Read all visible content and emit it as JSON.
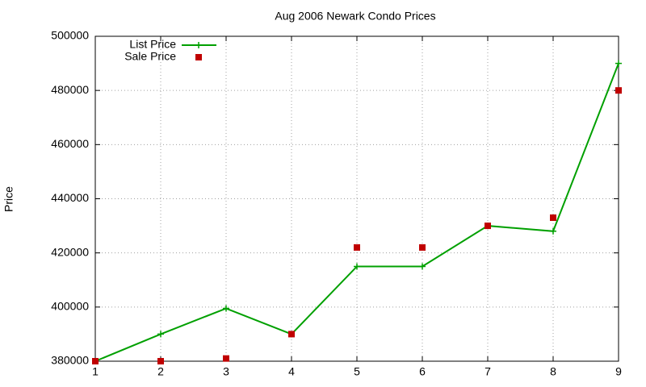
{
  "chart_data": {
    "type": "line",
    "title": "Aug 2006 Newark Condo Prices",
    "y_label": "Price",
    "x": [
      1,
      2,
      3,
      4,
      5,
      6,
      7,
      8,
      9
    ],
    "series": [
      {
        "name": "List Price",
        "color": "#00a000",
        "mode": "lines+markers",
        "values": [
          380000,
          390000,
          399500,
          390000,
          415000,
          415000,
          430000,
          428000,
          490000
        ]
      },
      {
        "name": "Sale Price",
        "color": "#c00000",
        "mode": "markers",
        "values": [
          380000,
          380000,
          381000,
          390000,
          422000,
          422000,
          430000,
          433000,
          480000
        ]
      }
    ],
    "xlim": [
      1,
      9
    ],
    "xticks": [
      1,
      2,
      3,
      4,
      5,
      6,
      7,
      8,
      9
    ],
    "ylim": [
      380000,
      500000
    ],
    "yticks": [
      380000,
      400000,
      420000,
      440000,
      460000,
      480000,
      500000
    ],
    "grid": true,
    "legend": "top-left"
  }
}
